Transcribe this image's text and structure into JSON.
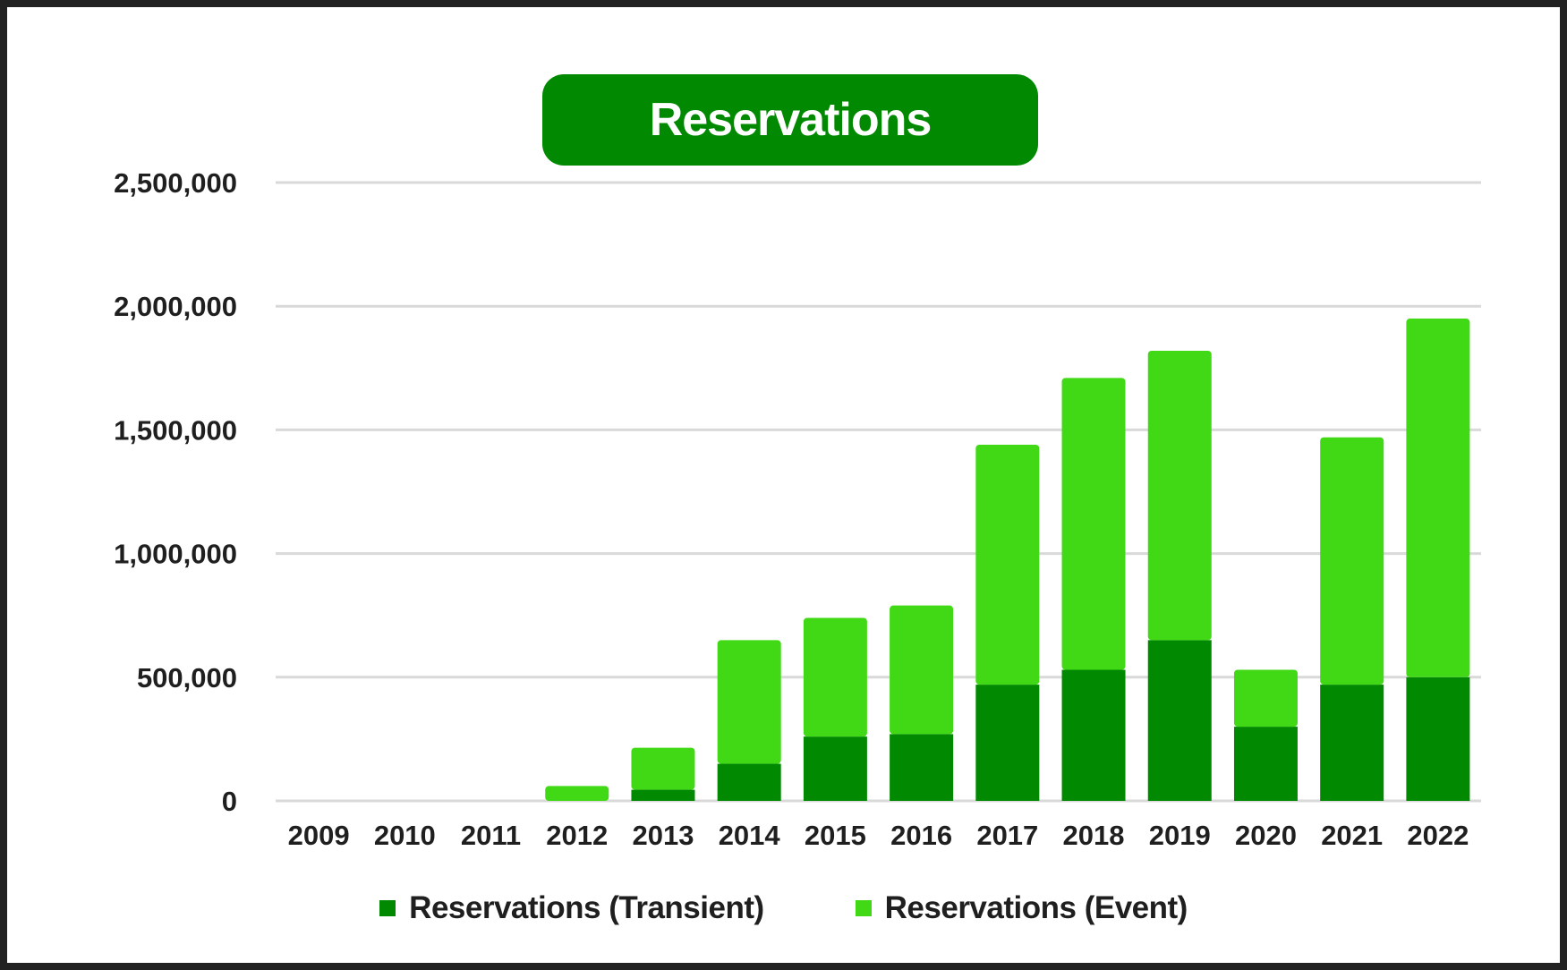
{
  "chart_data": {
    "type": "bar",
    "stacked": true,
    "title": "Reservations",
    "categories": [
      "2009",
      "2010",
      "2011",
      "2012",
      "2013",
      "2014",
      "2015",
      "2016",
      "2017",
      "2018",
      "2019",
      "2020",
      "2021",
      "2022"
    ],
    "series": [
      {
        "name": "Reservations (Transient)",
        "color": "#018a01",
        "values": [
          0,
          0,
          0,
          0,
          45000,
          150000,
          260000,
          270000,
          470000,
          530000,
          650000,
          300000,
          470000,
          500000
        ]
      },
      {
        "name": "Reservations (Event)",
        "color": "#41d916",
        "values": [
          0,
          0,
          0,
          60000,
          170000,
          500000,
          480000,
          520000,
          970000,
          1180000,
          1170000,
          230000,
          1000000,
          1450000
        ]
      }
    ],
    "ylim": [
      0,
      2500000
    ],
    "yticks": [
      0,
      500000,
      1000000,
      1500000,
      2000000,
      2500000
    ],
    "ytick_labels": [
      "0",
      "500,000",
      "1,000,000",
      "1,500,000",
      "2,000,000",
      "2,500,000"
    ],
    "grid": true,
    "legend_position": "bottom",
    "gridline_color": "#d9d9d9"
  }
}
